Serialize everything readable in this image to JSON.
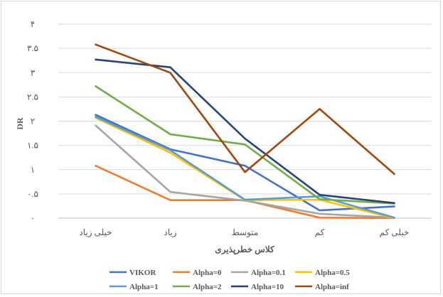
{
  "chart_data": {
    "type": "line",
    "title": "",
    "xlabel": "کلاس خطرپذیری",
    "ylabel": "DR",
    "categories": [
      "خیلی زیاد",
      "زیاد",
      "متوسط",
      "کم",
      "خیلی کم"
    ],
    "ylim": [
      0,
      4
    ],
    "yticks": [
      0,
      0.5,
      1,
      1.5,
      2,
      2.5,
      3,
      3.5,
      4
    ],
    "ytick_labels": [
      "۰",
      "۰.۵",
      "۱",
      "۱.۵",
      "۲",
      "۲.۵",
      "۳",
      "۳.۵",
      "۴"
    ],
    "grid": true,
    "legend_position": "bottom",
    "series": [
      {
        "name": "VIKOR",
        "color": "#4472c4",
        "values": [
          2.13,
          1.42,
          1.08,
          0.16,
          0.24
        ]
      },
      {
        "name": "Alpha=0",
        "color": "#ed7d31",
        "values": [
          1.08,
          0.37,
          0.37,
          0.01,
          0.0
        ]
      },
      {
        "name": "Alpha=0.1",
        "color": "#a5a5a5",
        "values": [
          1.91,
          0.54,
          0.36,
          0.09,
          0.01
        ]
      },
      {
        "name": "Alpha=0.5",
        "color": "#ffc000",
        "values": [
          2.07,
          1.35,
          0.37,
          0.38,
          0.0
        ]
      },
      {
        "name": "Alpha=1",
        "color": "#5b9bd5",
        "values": [
          2.09,
          1.4,
          0.38,
          0.45,
          0.01
        ]
      },
      {
        "name": "Alpha=2",
        "color": "#70ad47",
        "values": [
          2.72,
          1.73,
          1.52,
          0.39,
          0.3
        ]
      },
      {
        "name": "Alpha=10",
        "color": "#264478",
        "values": [
          3.27,
          3.11,
          1.64,
          0.48,
          0.31
        ]
      },
      {
        "name": "Alpha=inf",
        "color": "#9e480e",
        "values": [
          3.58,
          3.0,
          0.95,
          2.25,
          0.91
        ]
      }
    ]
  }
}
